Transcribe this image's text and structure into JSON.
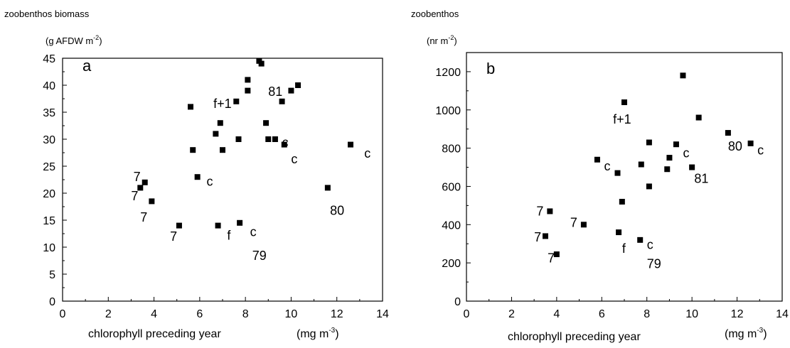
{
  "chart_data": [
    {
      "type": "scatter",
      "panel_letter": "a",
      "title_line1": "zoobenthos biomass",
      "title_line2_base": "(g AFDW m",
      "title_line2_sup": "-2",
      "title_line2_end": ")",
      "xlabel": "chlorophyll preceding year",
      "xunit_base": "(mg m",
      "xunit_sup": "-3",
      "xunit_end": ")",
      "xlim": [
        0,
        14
      ],
      "ylim": [
        0,
        45
      ],
      "xticks": [
        0,
        2,
        4,
        6,
        8,
        10,
        12,
        14
      ],
      "yticks": [
        0,
        5,
        10,
        15,
        20,
        25,
        30,
        35,
        40,
        45
      ],
      "points": [
        {
          "x": 3.4,
          "y": 21
        },
        {
          "x": 3.6,
          "y": 22
        },
        {
          "x": 3.9,
          "y": 18.5
        },
        {
          "x": 5.1,
          "y": 14
        },
        {
          "x": 5.6,
          "y": 36
        },
        {
          "x": 5.7,
          "y": 28
        },
        {
          "x": 5.9,
          "y": 23
        },
        {
          "x": 6.7,
          "y": 31
        },
        {
          "x": 6.8,
          "y": 14
        },
        {
          "x": 6.9,
          "y": 33
        },
        {
          "x": 7.0,
          "y": 28
        },
        {
          "x": 7.6,
          "y": 37
        },
        {
          "x": 7.7,
          "y": 30
        },
        {
          "x": 7.75,
          "y": 14.5
        },
        {
          "x": 8.1,
          "y": 41
        },
        {
          "x": 8.1,
          "y": 39
        },
        {
          "x": 8.6,
          "y": 44.5
        },
        {
          "x": 8.7,
          "y": 44
        },
        {
          "x": 8.9,
          "y": 33
        },
        {
          "x": 9.0,
          "y": 30
        },
        {
          "x": 9.3,
          "y": 30
        },
        {
          "x": 9.6,
          "y": 37
        },
        {
          "x": 9.7,
          "y": 29
        },
        {
          "x": 10.0,
          "y": 39
        },
        {
          "x": 10.3,
          "y": 40
        },
        {
          "x": 11.6,
          "y": 21
        },
        {
          "x": 12.6,
          "y": 29
        }
      ],
      "annotations": [
        {
          "text": "7",
          "x": 3.1,
          "y": 23.0
        },
        {
          "text": "7",
          "x": 3.0,
          "y": 19.5
        },
        {
          "text": "7",
          "x": 3.4,
          "y": 15.5
        },
        {
          "text": "7",
          "x": 4.7,
          "y": 12.0
        },
        {
          "text": "c",
          "x": 6.3,
          "y": 22.2
        },
        {
          "text": "f",
          "x": 7.2,
          "y": 12.2
        },
        {
          "text": "c",
          "x": 8.2,
          "y": 12.8
        },
        {
          "text": "79",
          "x": 8.3,
          "y": 8.4
        },
        {
          "text": "f+1",
          "x": 6.6,
          "y": 36.6
        },
        {
          "text": "81",
          "x": 9.0,
          "y": 38.8
        },
        {
          "text": "c",
          "x": 9.6,
          "y": 29.4
        },
        {
          "text": "c",
          "x": 10.0,
          "y": 26.3
        },
        {
          "text": "80",
          "x": 11.7,
          "y": 16.8
        },
        {
          "text": "c",
          "x": 13.2,
          "y": 27.4
        }
      ]
    },
    {
      "type": "scatter",
      "panel_letter": "b",
      "title_line1": "zoobenthos",
      "title_line2_base": "(nr m",
      "title_line2_sup": "-2",
      "title_line2_end": ")",
      "xlabel": "chlorophyll preceding year",
      "xunit_base": "(mg m",
      "xunit_sup": "-3",
      "xunit_end": ")",
      "xlim": [
        0,
        14
      ],
      "ylim": [
        0,
        1300
      ],
      "xticks": [
        0,
        2,
        4,
        6,
        8,
        10,
        12,
        14
      ],
      "yticks": [
        0,
        200,
        400,
        600,
        800,
        1000,
        1200
      ],
      "points": [
        {
          "x": 3.5,
          "y": 340
        },
        {
          "x": 3.7,
          "y": 470
        },
        {
          "x": 4.0,
          "y": 245
        },
        {
          "x": 5.2,
          "y": 400
        },
        {
          "x": 5.8,
          "y": 740
        },
        {
          "x": 6.7,
          "y": 670
        },
        {
          "x": 6.75,
          "y": 360
        },
        {
          "x": 6.9,
          "y": 520
        },
        {
          "x": 7.0,
          "y": 1040
        },
        {
          "x": 7.7,
          "y": 320
        },
        {
          "x": 7.75,
          "y": 715
        },
        {
          "x": 8.1,
          "y": 600
        },
        {
          "x": 8.1,
          "y": 830
        },
        {
          "x": 8.9,
          "y": 690
        },
        {
          "x": 9.0,
          "y": 750
        },
        {
          "x": 9.3,
          "y": 820
        },
        {
          "x": 9.6,
          "y": 1180
        },
        {
          "x": 10.0,
          "y": 700
        },
        {
          "x": 10.3,
          "y": 960
        },
        {
          "x": 11.6,
          "y": 880
        },
        {
          "x": 12.6,
          "y": 825
        }
      ],
      "annotations": [
        {
          "text": "7",
          "x": 3.1,
          "y": 470
        },
        {
          "text": "7",
          "x": 4.6,
          "y": 410
        },
        {
          "text": "7",
          "x": 3.0,
          "y": 335
        },
        {
          "text": "7",
          "x": 3.6,
          "y": 225
        },
        {
          "text": "c",
          "x": 6.1,
          "y": 705
        },
        {
          "text": "f+1",
          "x": 6.5,
          "y": 950
        },
        {
          "text": "f",
          "x": 6.9,
          "y": 275
        },
        {
          "text": "c",
          "x": 8.0,
          "y": 295
        },
        {
          "text": "79",
          "x": 8.0,
          "y": 195
        },
        {
          "text": "c",
          "x": 9.6,
          "y": 775
        },
        {
          "text": "81",
          "x": 10.1,
          "y": 640
        },
        {
          "text": "80",
          "x": 11.6,
          "y": 810
        },
        {
          "text": "c",
          "x": 12.9,
          "y": 790
        }
      ]
    }
  ]
}
